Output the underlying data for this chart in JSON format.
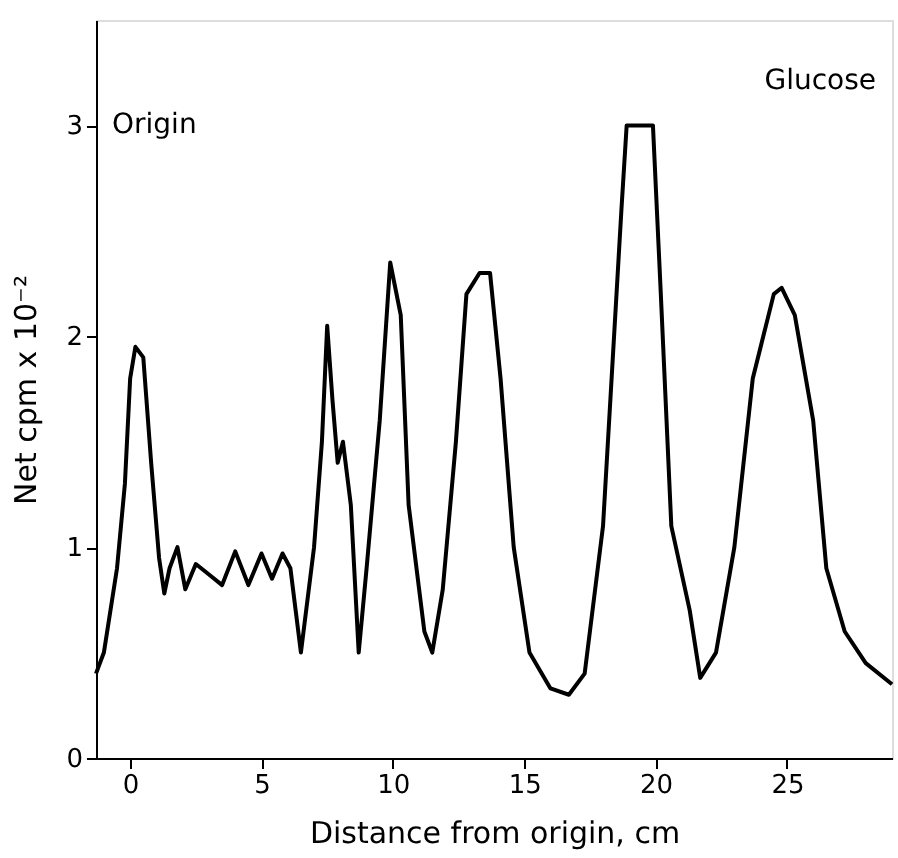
{
  "chart_data": {
    "type": "line",
    "xlabel": "Distance from origin,  cm",
    "ylabel": "Net cpm x 10⁻²",
    "series": [
      {
        "color": "#000000",
        "x": [
          -1.3,
          -1,
          -0.5,
          -0.2,
          0,
          0.2,
          0.5,
          0.8,
          1.1,
          1.3,
          1.5,
          1.8,
          2.1,
          2.5,
          3,
          3.5,
          4,
          4.5,
          5,
          5.4,
          5.8,
          6.1,
          6.5,
          7,
          7.3,
          7.5,
          7.7,
          7.9,
          8.1,
          8.4,
          8.7,
          9,
          9.5,
          9.9,
          10.3,
          10.6,
          11.2,
          11.5,
          11.9,
          12.4,
          12.8,
          13.3,
          13.7,
          14.1,
          14.6,
          15.2,
          16,
          16.7,
          17.3,
          18,
          18.7,
          18.9,
          19.9,
          20.2,
          20.6,
          21.3,
          21.7,
          22.3,
          23,
          23.7,
          24.5,
          24.8,
          25.3,
          26,
          26.5,
          27.2,
          28,
          29
        ],
        "values": [
          0.4,
          0.5,
          0.9,
          1.3,
          1.8,
          1.95,
          1.9,
          1.4,
          0.95,
          0.78,
          0.9,
          1.0,
          0.8,
          0.92,
          0.87,
          0.82,
          0.98,
          0.82,
          0.97,
          0.85,
          0.97,
          0.9,
          0.5,
          1.0,
          1.5,
          2.05,
          1.7,
          1.4,
          1.5,
          1.2,
          0.5,
          0.9,
          1.6,
          2.35,
          2.1,
          1.2,
          0.6,
          0.5,
          0.8,
          1.5,
          2.2,
          2.3,
          2.3,
          1.8,
          1.0,
          0.5,
          0.33,
          0.3,
          0.4,
          1.1,
          2.6,
          3.0,
          3.0,
          2.2,
          1.1,
          0.7,
          0.38,
          0.5,
          1.0,
          1.8,
          2.2,
          2.23,
          2.1,
          1.6,
          0.9,
          0.6,
          0.45,
          0.35
        ]
      }
    ],
    "xlim": [
      -1.3,
      29
    ],
    "xticks": [
      0,
      5,
      10,
      15,
      20,
      25
    ],
    "ylim": [
      0,
      3.5
    ],
    "yticks": [
      0,
      1,
      2,
      3
    ],
    "grid": false,
    "marker": "none",
    "line_style": "solid",
    "annotations": [
      "Origin",
      "Glucose"
    ]
  }
}
